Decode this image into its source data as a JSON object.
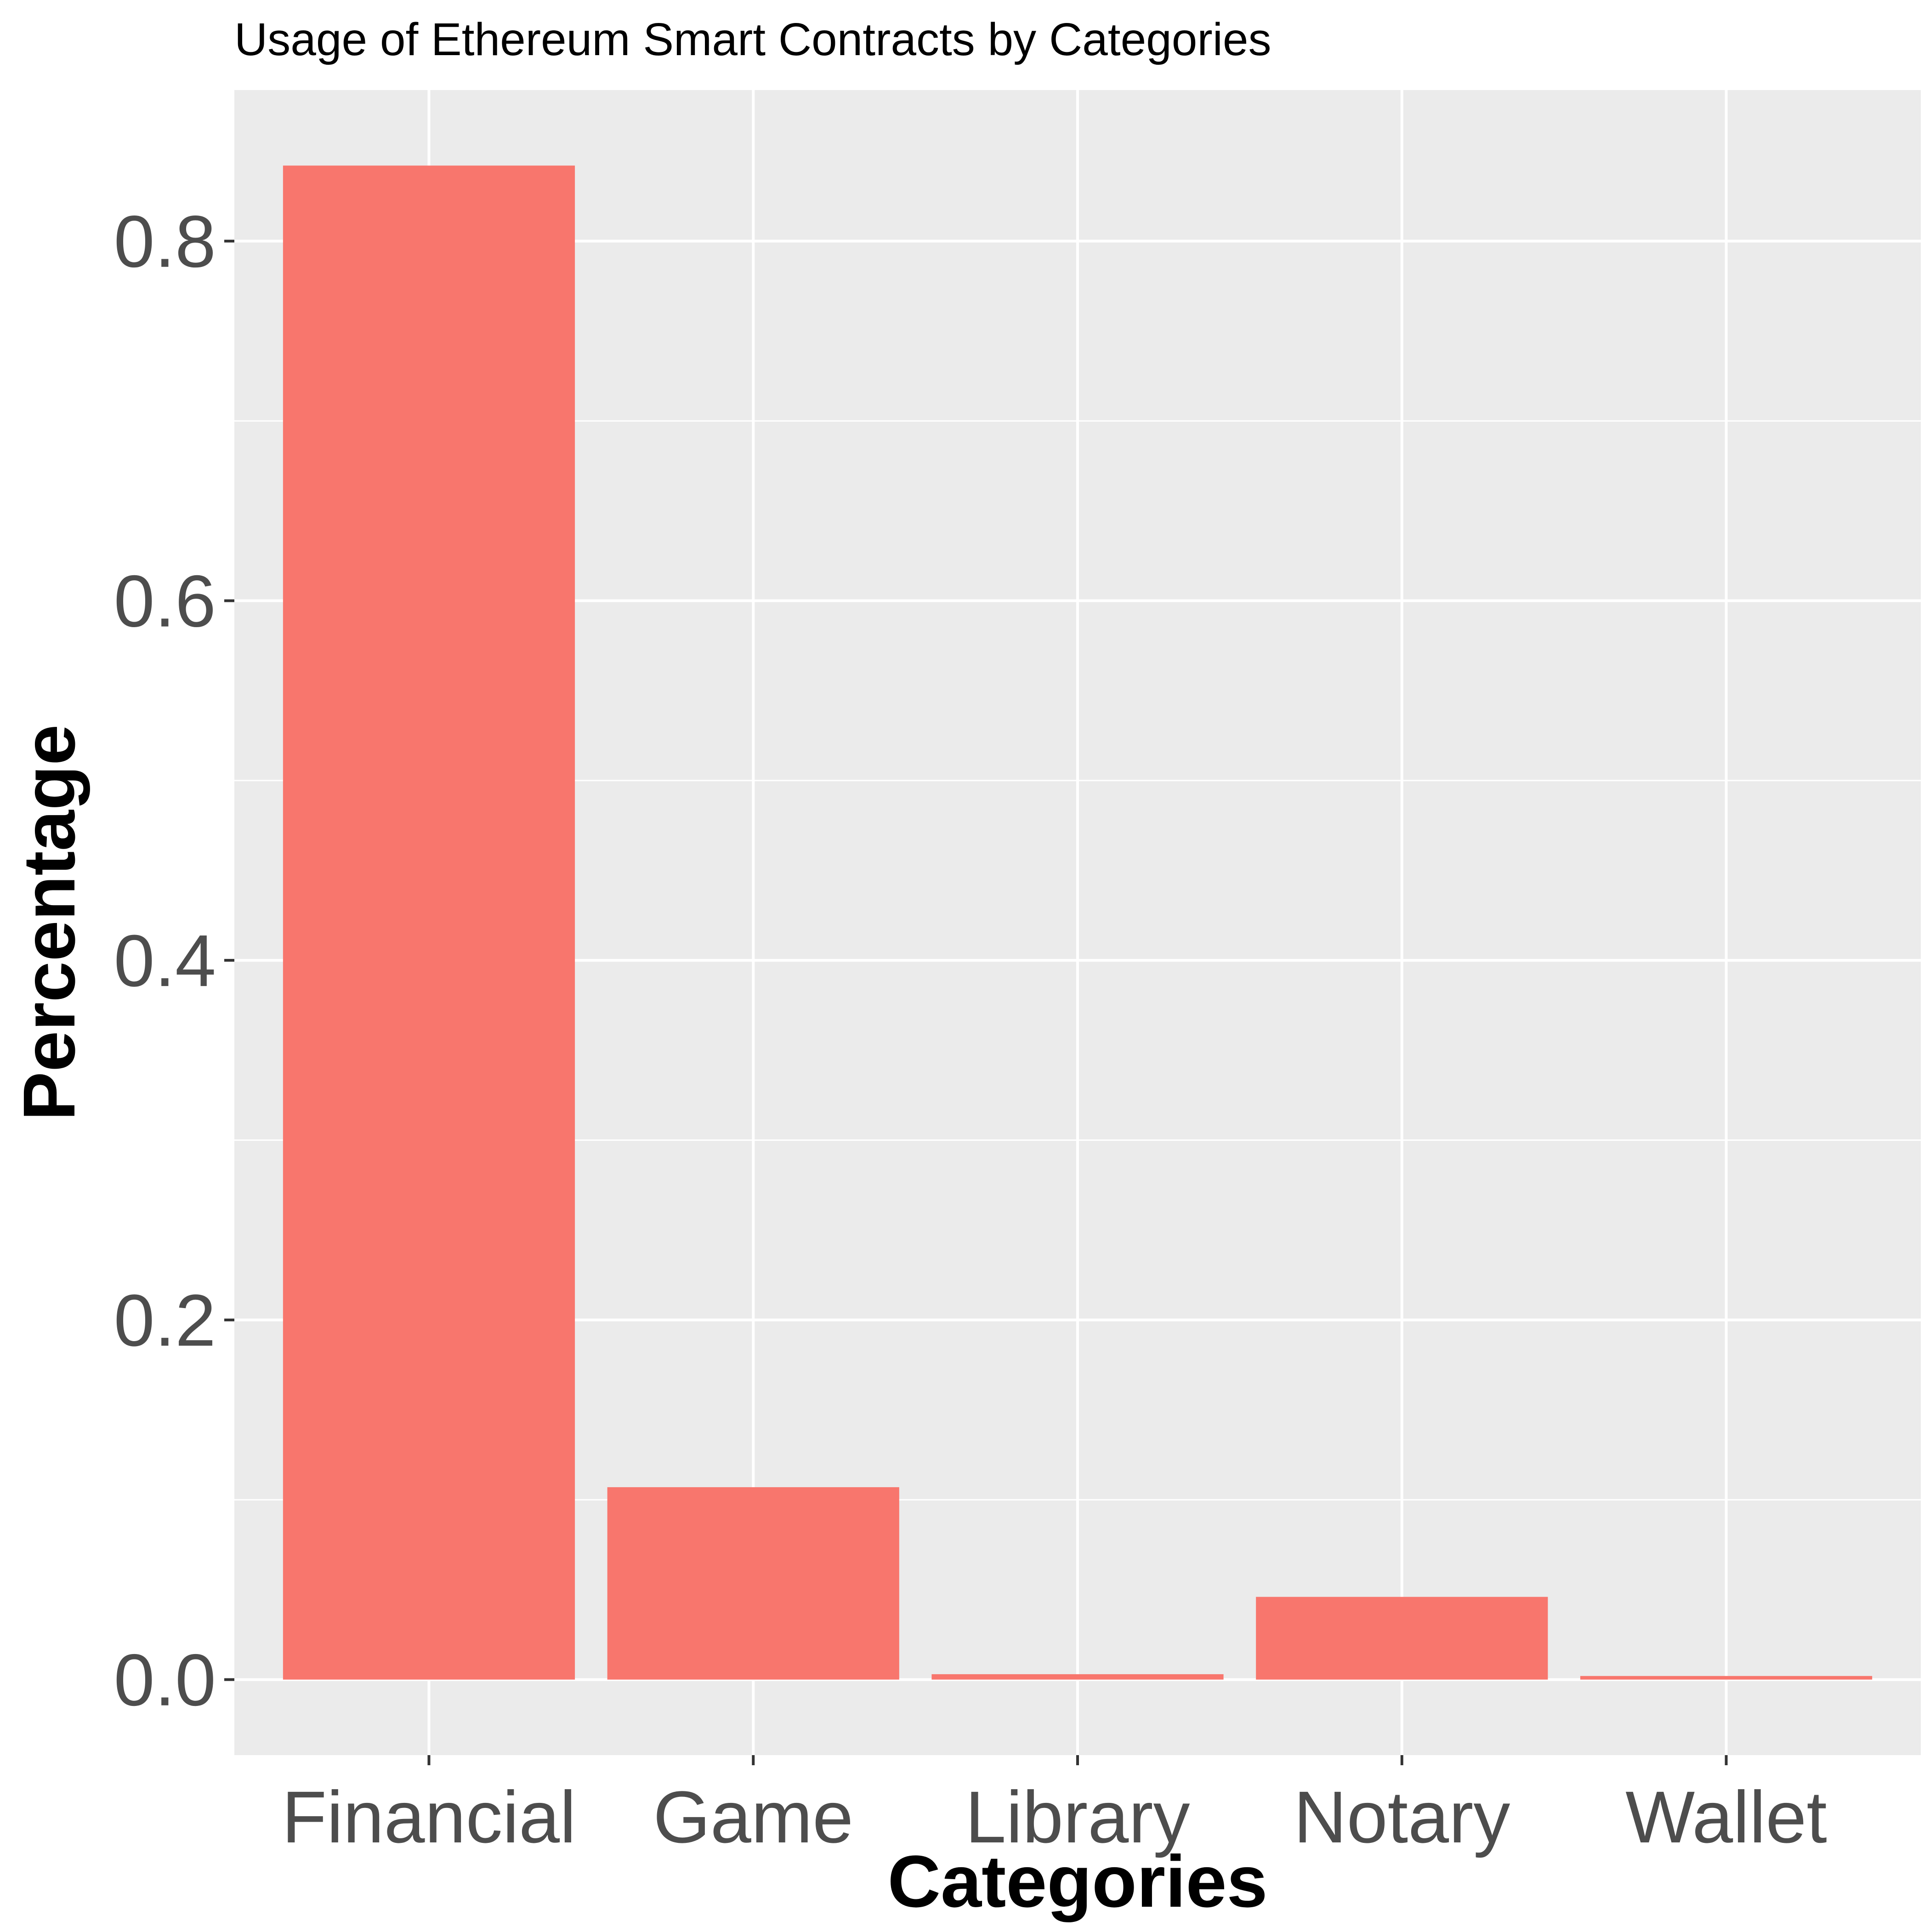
{
  "chart_data": {
    "type": "bar",
    "title": "Usage of Ethereum Smart Contracts by Categories",
    "xlabel": "Categories",
    "ylabel": "Percentage",
    "categories": [
      "Financial",
      "Game",
      "Library",
      "Notary",
      "Wallet"
    ],
    "values": [
      0.842,
      0.107,
      0.003,
      0.046,
      0.002
    ],
    "ylim": [
      -0.042,
      0.884
    ],
    "yticks": [
      0.0,
      0.2,
      0.4,
      0.6,
      0.8
    ],
    "ytick_labels": [
      "0.0",
      "0.2",
      "0.4",
      "0.6",
      "0.8"
    ],
    "grid": true,
    "legend": "none",
    "colors": {
      "bar": "#F8766D",
      "panel": "#EBEBEB",
      "grid": "#FFFFFF",
      "tick_text": "#4D4D4D",
      "tick_mark": "#333333"
    }
  }
}
